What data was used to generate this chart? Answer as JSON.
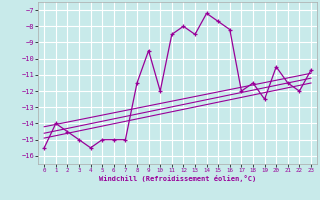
{
  "xlabel": "Windchill (Refroidissement éolien,°C)",
  "background_color": "#c8eaea",
  "grid_color": "#ffffff",
  "line_color": "#990099",
  "xlim": [
    -0.5,
    23.5
  ],
  "ylim": [
    -16.5,
    -6.5
  ],
  "yticks": [
    -16,
    -15,
    -14,
    -13,
    -12,
    -11,
    -10,
    -9,
    -8,
    -7
  ],
  "xticks": [
    0,
    1,
    2,
    3,
    4,
    5,
    6,
    7,
    8,
    9,
    10,
    11,
    12,
    13,
    14,
    15,
    16,
    17,
    18,
    19,
    20,
    21,
    22,
    23
  ],
  "hours": [
    0,
    1,
    2,
    3,
    4,
    5,
    6,
    7,
    8,
    9,
    10,
    11,
    12,
    13,
    14,
    15,
    16,
    17,
    18,
    19,
    20,
    21,
    22,
    23
  ],
  "windchill": [
    -15.5,
    -14.0,
    -14.5,
    -15.0,
    -15.5,
    -15.0,
    -15.0,
    -15.0,
    -11.5,
    -9.5,
    -12.0,
    -8.5,
    -8.0,
    -8.5,
    -7.2,
    -7.7,
    -8.2,
    -12.0,
    -11.5,
    -12.5,
    -10.5,
    -11.5,
    -12.0,
    -10.7
  ],
  "line1_x": [
    0,
    23
  ],
  "line1_y": [
    -14.6,
    -11.2
  ],
  "line2_x": [
    0,
    23
  ],
  "line2_y": [
    -14.2,
    -10.9
  ],
  "line3_x": [
    0,
    23
  ],
  "line3_y": [
    -14.9,
    -11.5
  ]
}
